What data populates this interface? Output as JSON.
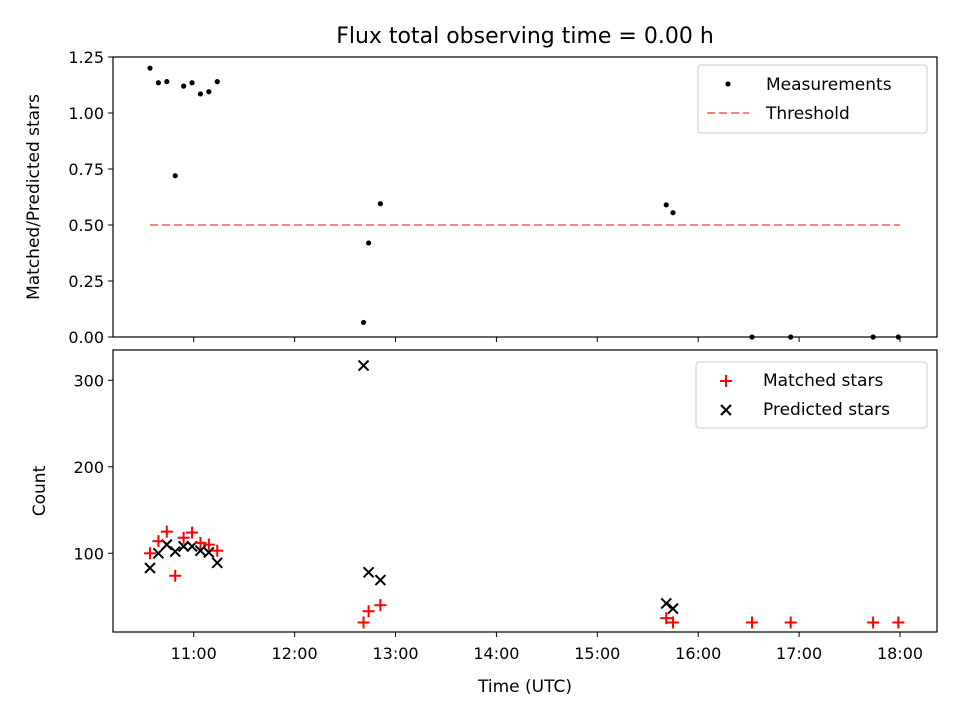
{
  "chart_data": [
    {
      "type": "scatter",
      "title": "Flux total observing time = 0.00 h",
      "xlabel": "",
      "ylabel": "Matched/Predicted stars",
      "xlim": [
        "10:12",
        "18:22"
      ],
      "ylim": [
        0,
        1.25
      ],
      "yticks": [
        0.0,
        0.25,
        0.5,
        0.75,
        1.0,
        1.25
      ],
      "ytick_labels": [
        "0.00",
        "0.25",
        "0.50",
        "0.75",
        "1.00",
        "1.25"
      ],
      "legend_position": "top-right",
      "series": [
        {
          "name": "Measurements",
          "marker": "dot",
          "color": "#000000",
          "x": [
            "10:34",
            "10:39",
            "10:44",
            "10:49",
            "10:54",
            "10:59",
            "11:04",
            "11:09",
            "11:14",
            "12:41",
            "12:44",
            "12:51",
            "15:41",
            "15:45",
            "16:32",
            "16:55",
            "17:44",
            "17:59"
          ],
          "y": [
            1.2,
            1.135,
            1.14,
            0.72,
            1.12,
            1.135,
            1.085,
            1.095,
            1.14,
            0.065,
            0.42,
            0.595,
            0.59,
            0.555,
            0.0,
            0.0,
            0.0,
            0.0
          ]
        },
        {
          "name": "Threshold",
          "type": "line",
          "style": "dashed",
          "color": "#ff7f7f",
          "x": [
            "10:34",
            "18:00"
          ],
          "y": [
            0.5,
            0.5
          ]
        }
      ]
    },
    {
      "type": "scatter",
      "title": "",
      "xlabel": "Time (UTC)",
      "ylabel": "Count",
      "xlim": [
        "10:12",
        "18:22"
      ],
      "ylim": [
        9,
        335
      ],
      "xticks": [
        "11:00",
        "12:00",
        "13:00",
        "14:00",
        "15:00",
        "16:00",
        "17:00",
        "18:00"
      ],
      "yticks": [
        100,
        200,
        300
      ],
      "legend_position": "top-right",
      "series": [
        {
          "name": "Matched stars",
          "marker": "plus",
          "color": "#ff0000",
          "x": [
            "10:34",
            "10:39",
            "10:44",
            "10:49",
            "10:54",
            "10:59",
            "11:04",
            "11:09",
            "11:14",
            "12:41",
            "12:44",
            "12:51",
            "15:41",
            "15:45",
            "16:32",
            "16:55",
            "17:44",
            "17:59"
          ],
          "y": [
            100,
            114,
            125,
            74,
            118,
            124,
            112,
            110,
            103,
            20,
            33,
            40,
            25,
            20,
            20,
            20,
            20,
            20
          ]
        },
        {
          "name": "Predicted stars",
          "marker": "x",
          "color": "#000000",
          "x": [
            "10:34",
            "10:39",
            "10:44",
            "10:49",
            "10:54",
            "10:59",
            "11:04",
            "11:09",
            "11:14",
            "12:41",
            "12:44",
            "12:51",
            "15:41",
            "15:45"
          ],
          "y": [
            83,
            100,
            110,
            102,
            108,
            108,
            103,
            101,
            89,
            317,
            78,
            69,
            42,
            36
          ]
        }
      ]
    }
  ]
}
